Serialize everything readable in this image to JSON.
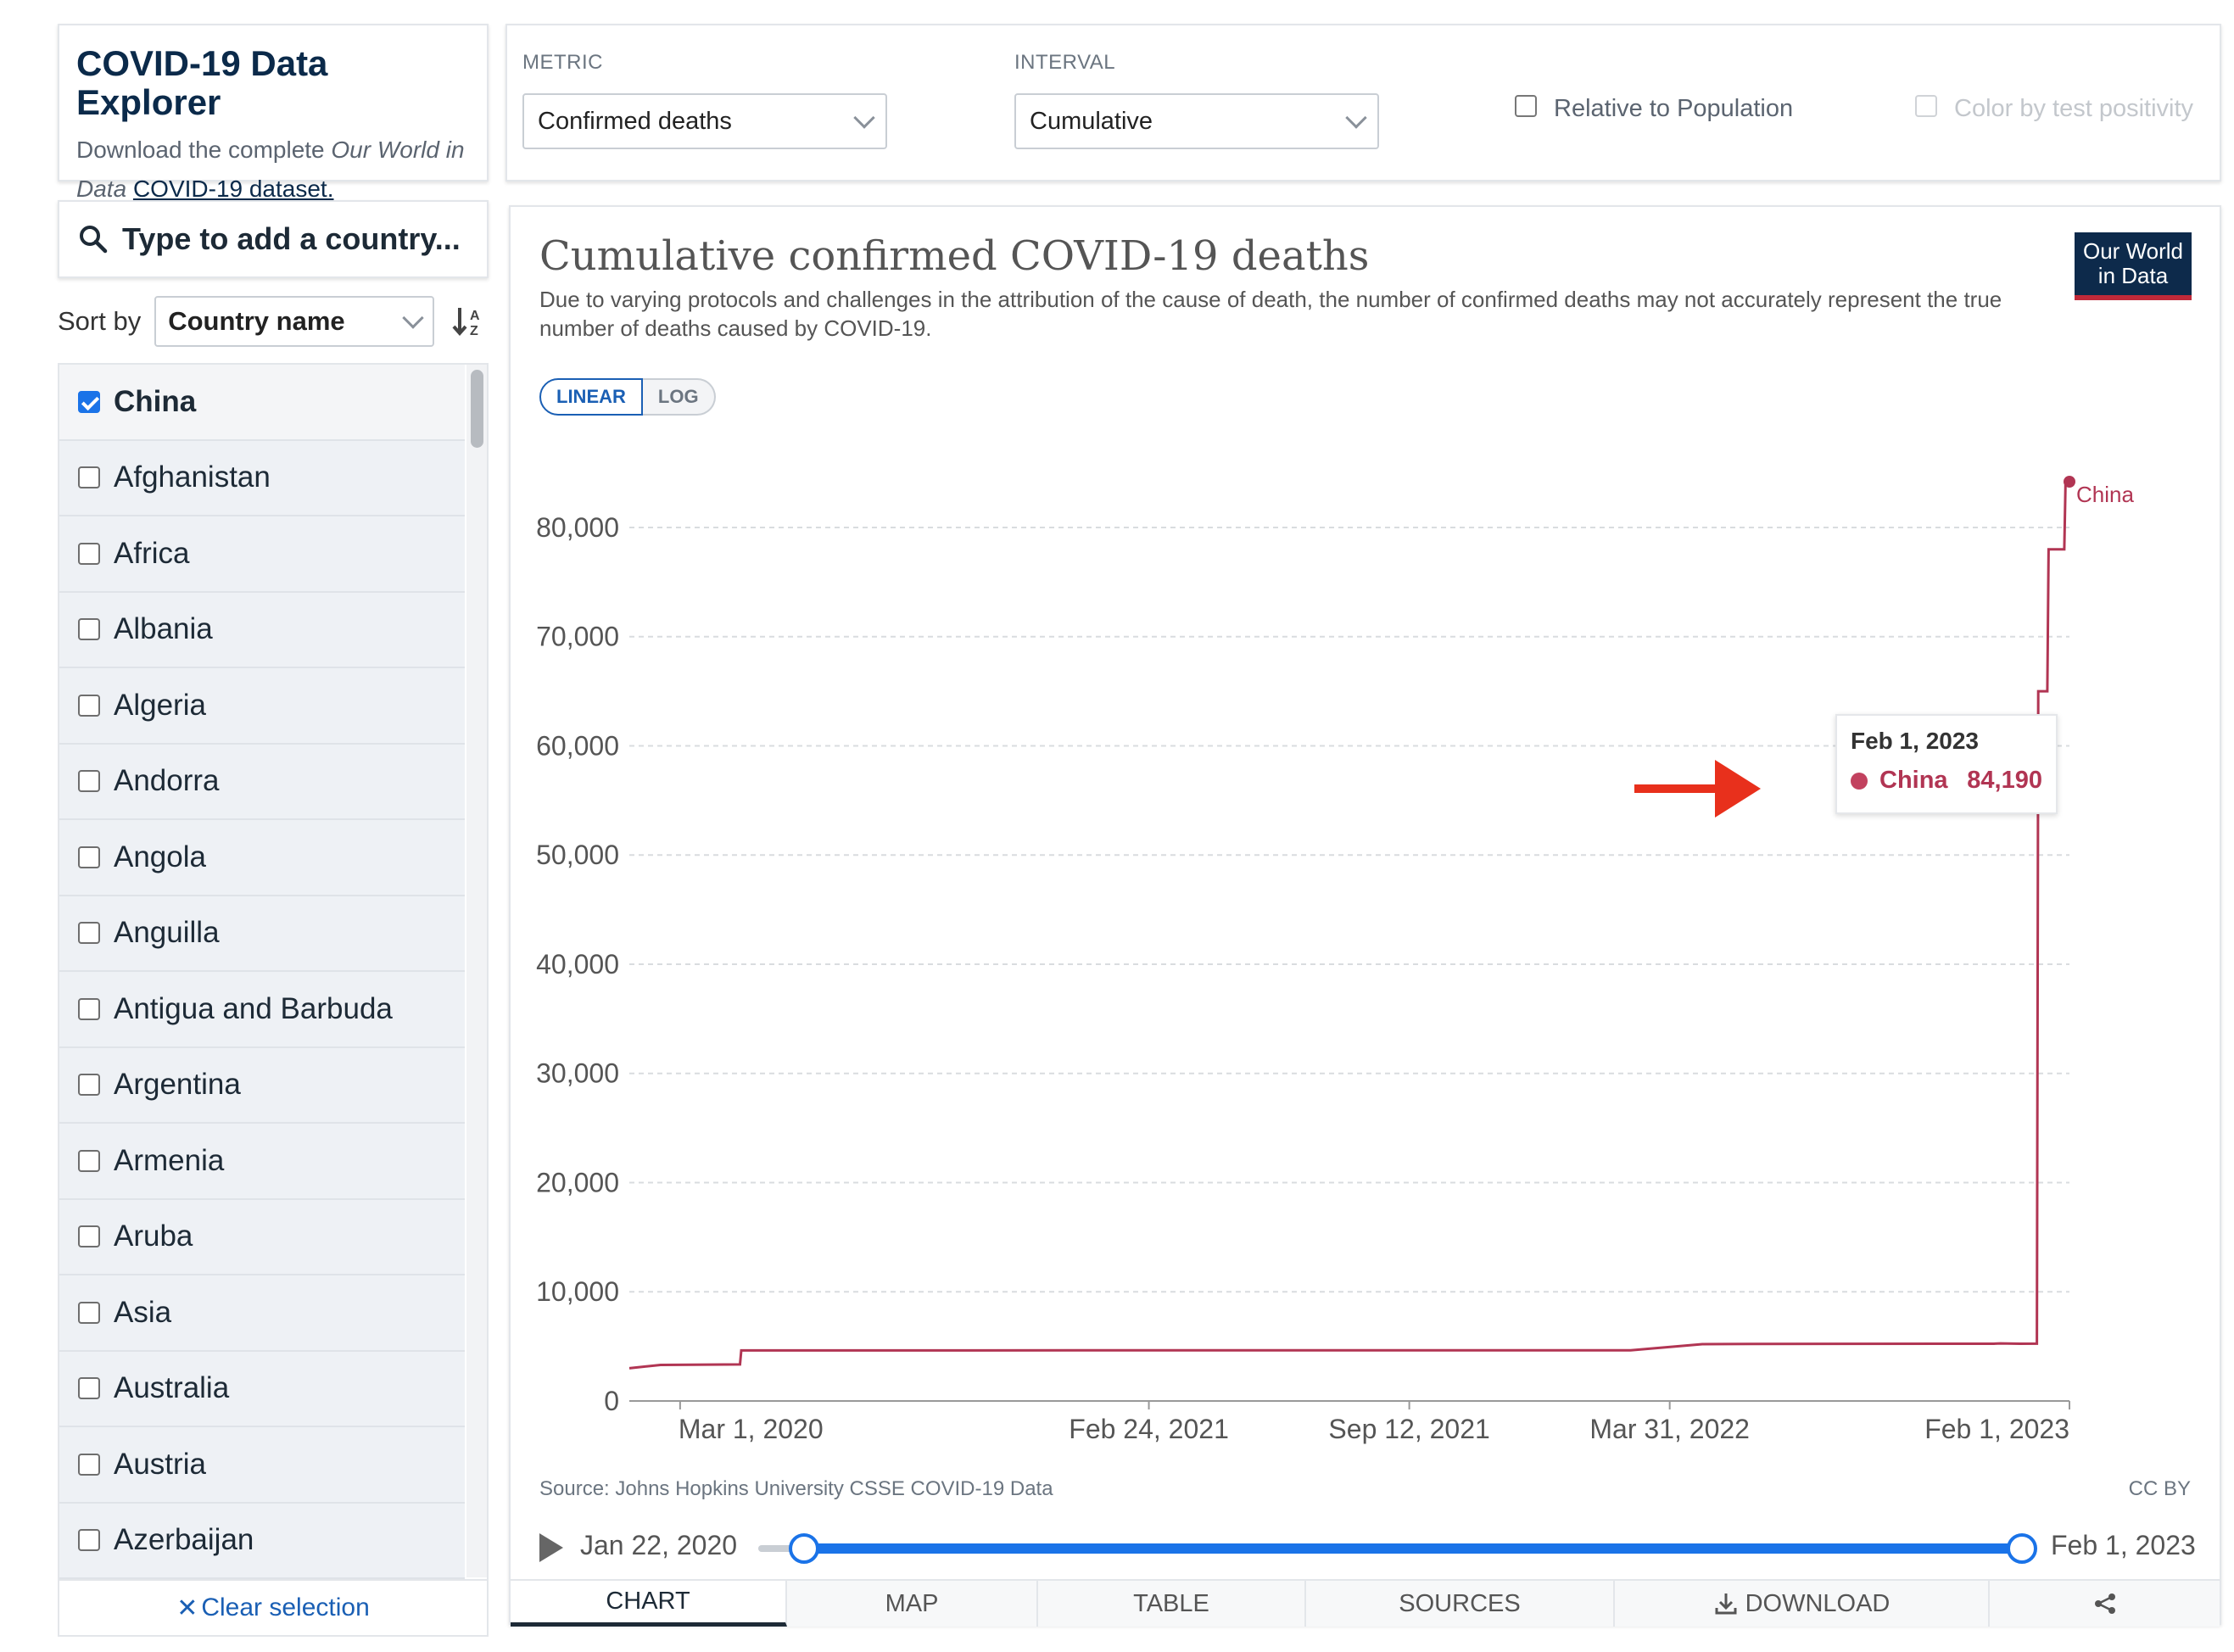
{
  "header": {
    "title": "COVID-19 Data Explorer",
    "desc_prefix": "Download the complete ",
    "desc_italic": "Our World in Data",
    "desc_link": "COVID-19 dataset."
  },
  "controls": {
    "metric_label": "METRIC",
    "metric_value": "Confirmed deaths",
    "interval_label": "INTERVAL",
    "interval_value": "Cumulative",
    "relative_label": "Relative to Population",
    "color_label": "Color by test positivity"
  },
  "search": {
    "placeholder": "Type to add a country..."
  },
  "sort": {
    "label": "Sort by",
    "value": "Country name"
  },
  "countries": [
    {
      "name": "China",
      "checked": true
    },
    {
      "name": "Afghanistan",
      "checked": false
    },
    {
      "name": "Africa",
      "checked": false
    },
    {
      "name": "Albania",
      "checked": false
    },
    {
      "name": "Algeria",
      "checked": false
    },
    {
      "name": "Andorra",
      "checked": false
    },
    {
      "name": "Angola",
      "checked": false
    },
    {
      "name": "Anguilla",
      "checked": false
    },
    {
      "name": "Antigua and Barbuda",
      "checked": false
    },
    {
      "name": "Argentina",
      "checked": false
    },
    {
      "name": "Armenia",
      "checked": false
    },
    {
      "name": "Aruba",
      "checked": false
    },
    {
      "name": "Asia",
      "checked": false
    },
    {
      "name": "Australia",
      "checked": false
    },
    {
      "name": "Austria",
      "checked": false
    },
    {
      "name": "Azerbaijan",
      "checked": false
    }
  ],
  "clear_selection": "Clear selection",
  "chart": {
    "title": "Cumulative confirmed COVID-19 deaths",
    "subtitle": "Due to varying protocols and challenges in the attribution of the cause of death, the number of confirmed deaths may not accurately represent the true number of deaths caused by COVID-19.",
    "logo_line1": "Our World",
    "logo_line2": "in Data",
    "scale_linear": "LINEAR",
    "scale_log": "LOG",
    "source": "Source: Johns Hopkins University CSSE COVID-19 Data",
    "license": "CC BY",
    "tooltip_date": "Feb 1, 2023",
    "tooltip_country": "China",
    "tooltip_value": "84,190",
    "series_label": "China"
  },
  "timeline": {
    "start": "Jan 22, 2020",
    "end": "Feb 1, 2023"
  },
  "tabs": [
    "CHART",
    "MAP",
    "TABLE",
    "SOURCES",
    "DOWNLOAD"
  ],
  "colors": {
    "series": "#b13553",
    "brand": "#0d2a4b",
    "accent": "#1a73e8",
    "arrow": "#e8301c"
  },
  "chart_data": {
    "type": "line",
    "title": "Cumulative confirmed COVID-19 deaths",
    "ylim": [
      0,
      84190
    ],
    "yticks": [
      "0",
      "10,000",
      "20,000",
      "30,000",
      "40,000",
      "50,000",
      "60,000",
      "70,000",
      "80,000"
    ],
    "ytick_values": [
      0,
      10000,
      20000,
      30000,
      40000,
      50000,
      60000,
      70000,
      80000
    ],
    "xticks": [
      "Mar 1, 2020",
      "Feb 24, 2021",
      "Sep 12, 2021",
      "Mar 31, 2022",
      "Feb 1, 2023"
    ],
    "xtick_dates": [
      "2020-03-01",
      "2021-02-24",
      "2021-09-12",
      "2022-03-31",
      "2023-02-01"
    ],
    "x_range": [
      "2020-01-22",
      "2023-02-01"
    ],
    "grid": true,
    "series": [
      {
        "name": "China",
        "points": [
          [
            "2020-01-22",
            3000
          ],
          [
            "2020-02-15",
            3300
          ],
          [
            "2020-04-16",
            3350
          ],
          [
            "2020-04-17",
            4630
          ],
          [
            "2021-01-01",
            4640
          ],
          [
            "2022-03-01",
            4640
          ],
          [
            "2022-04-25",
            5200
          ],
          [
            "2022-06-01",
            5230
          ],
          [
            "2022-12-01",
            5240
          ],
          [
            "2022-12-05",
            5240
          ],
          [
            "2022-12-06",
            5250
          ],
          [
            "2022-12-10",
            5270
          ],
          [
            "2022-12-25",
            5240
          ],
          [
            "2023-01-07",
            5250
          ],
          [
            "2023-01-08",
            65000
          ],
          [
            "2023-01-15",
            65000
          ],
          [
            "2023-01-16",
            78000
          ],
          [
            "2023-01-28",
            78000
          ],
          [
            "2023-01-29",
            84190
          ],
          [
            "2023-02-01",
            84190
          ]
        ]
      }
    ]
  }
}
